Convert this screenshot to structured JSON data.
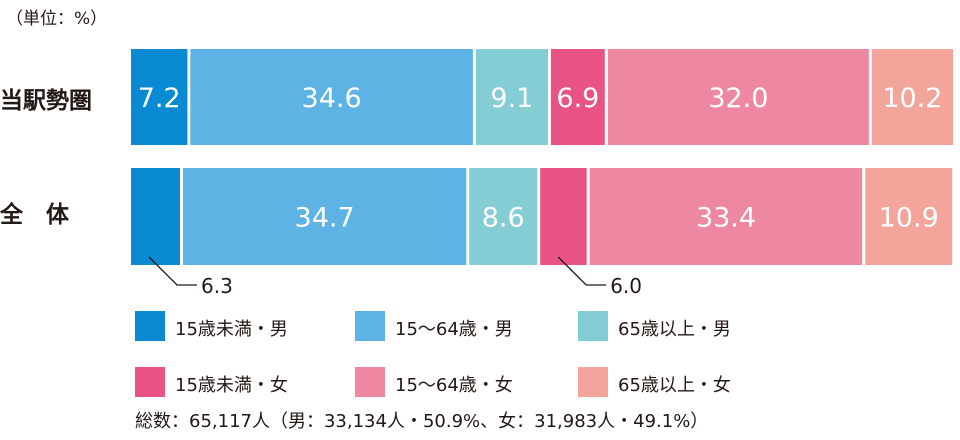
{
  "unit_label": "（単位：%）",
  "total_label": "総数：65,117人（男：33,134人・50.9%、女：31,983人・49.1%）",
  "chart_data": {
    "type": "bar",
    "orientation": "horizontal-stacked-100",
    "categories": [
      "当駅勢圏",
      "全　体"
    ],
    "series": [
      {
        "name": "15歳未満・男",
        "color": "#0a8ad2",
        "values": [
          7.2,
          6.3
        ]
      },
      {
        "name": "15〜64歳・男",
        "color": "#5cb3e4",
        "values": [
          34.6,
          34.7
        ]
      },
      {
        "name": "65歳以上・男",
        "color": "#84cdd5",
        "values": [
          9.1,
          8.6
        ]
      },
      {
        "name": "15歳未満・女",
        "color": "#e95383",
        "values": [
          6.9,
          6.0
        ]
      },
      {
        "name": "15〜64歳・女",
        "color": "#ee88a2",
        "values": [
          32.0,
          33.4
        ]
      },
      {
        "name": "65歳以上・女",
        "color": "#f3a59c",
        "values": [
          10.2,
          10.9
        ]
      }
    ],
    "value_labels": [
      [
        "7.2",
        "34.6",
        "9.1",
        "6.9",
        "32.0",
        "10.2"
      ],
      [
        "6.3",
        "34.7",
        "8.6",
        "6.0",
        "33.4",
        "10.9"
      ]
    ],
    "callout_labels": [
      {
        "row": 1,
        "series": 0,
        "label": "6.3"
      },
      {
        "row": 1,
        "series": 3,
        "label": "6.0"
      }
    ],
    "xlim": [
      0,
      100
    ],
    "legend": "bottom"
  }
}
